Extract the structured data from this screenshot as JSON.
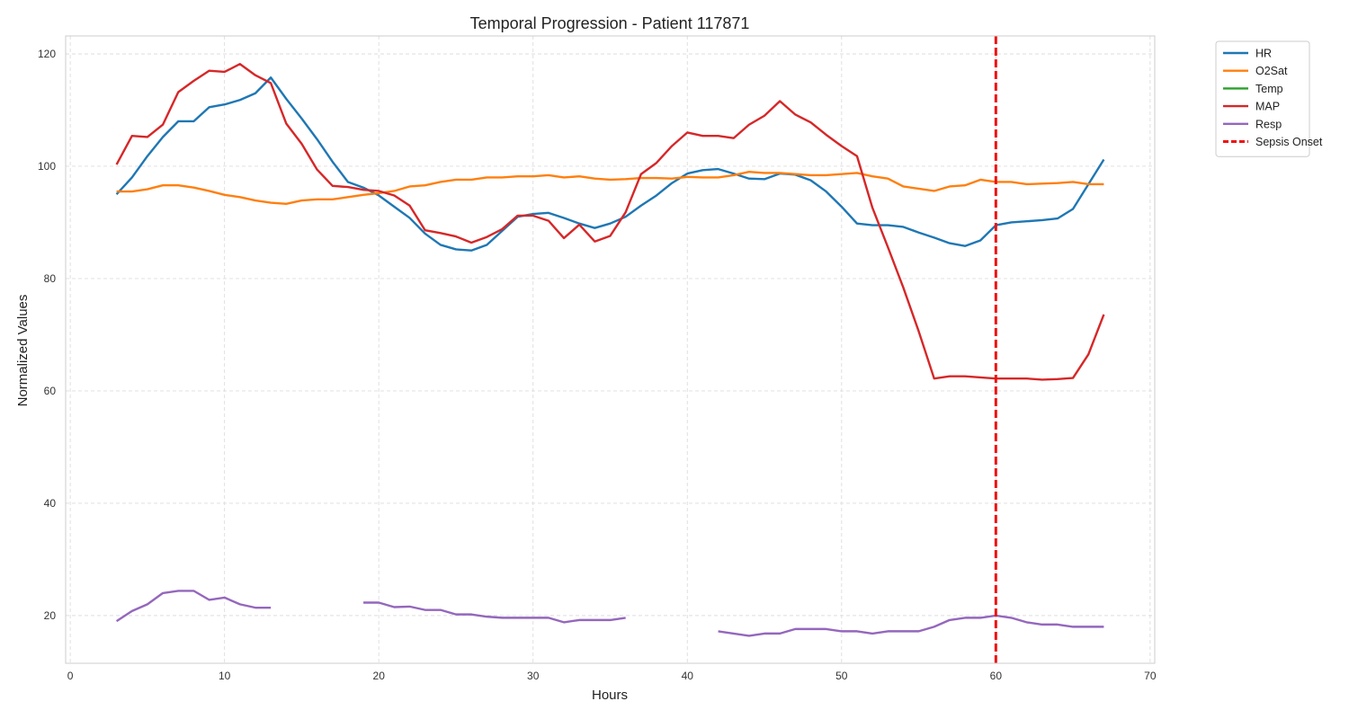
{
  "chart_data": {
    "type": "line",
    "title": "Temporal Progression - Patient 117871",
    "xlabel": "Hours",
    "ylabel": "Normalized Values",
    "xlim": [
      -0.3,
      70.3
    ],
    "ylim": [
      11.5,
      123.2
    ],
    "xticks": [
      0,
      10,
      20,
      30,
      40,
      50,
      60,
      70
    ],
    "yticks": [
      20,
      40,
      60,
      80,
      100,
      120
    ],
    "grid": true,
    "legend_position": "outside top-right",
    "series": [
      {
        "name": "HR",
        "color": "#1f77b4",
        "x": [
          3,
          4,
          5,
          6,
          7,
          8,
          9,
          10,
          11,
          12,
          13,
          14,
          15,
          16,
          17,
          18,
          19,
          20,
          21,
          22,
          23,
          24,
          25,
          26,
          27,
          28,
          29,
          30,
          31,
          32,
          33,
          34,
          35,
          36,
          37,
          38,
          39,
          40,
          41,
          42,
          43,
          44,
          45,
          46,
          47,
          48,
          49,
          50,
          51,
          52,
          53,
          54,
          55,
          56,
          57,
          58,
          59,
          60,
          61,
          62,
          63,
          64,
          65,
          66,
          67
        ],
        "y": [
          95,
          98,
          101.8,
          105.2,
          108,
          108,
          110.5,
          111,
          111.8,
          113,
          115.8,
          112,
          108.5,
          104.8,
          100.8,
          97.2,
          96.2,
          94.8,
          92.8,
          90.8,
          88,
          86,
          85.2,
          85,
          86,
          88.5,
          91,
          91.5,
          91.7,
          90.8,
          89.8,
          89,
          89.8,
          91,
          93,
          94.8,
          97,
          98.7,
          99.3,
          99.5,
          98.7,
          97.8,
          97.7,
          98.7,
          98.5,
          97.5,
          95.5,
          92.8,
          89.8,
          89.5,
          89.5,
          89.2,
          88.2,
          87.3,
          86.3,
          85.8,
          86.8,
          89.5,
          90,
          90.2,
          90.4,
          90.7,
          92.4,
          96.8,
          101.2
        ]
      },
      {
        "name": "O2Sat",
        "color": "#ff7f0e",
        "x": [
          3,
          4,
          5,
          6,
          7,
          8,
          9,
          10,
          11,
          12,
          13,
          14,
          15,
          16,
          17,
          18,
          19,
          20,
          21,
          22,
          23,
          24,
          25,
          26,
          27,
          28,
          29,
          30,
          31,
          32,
          33,
          34,
          35,
          36,
          37,
          38,
          39,
          40,
          41,
          42,
          43,
          44,
          45,
          46,
          47,
          48,
          49,
          50,
          51,
          52,
          53,
          54,
          55,
          56,
          57,
          58,
          59,
          60,
          61,
          62,
          63,
          64,
          65,
          66,
          67
        ],
        "y": [
          95.5,
          95.5,
          95.9,
          96.6,
          96.6,
          96.2,
          95.6,
          94.9,
          94.5,
          93.9,
          93.5,
          93.3,
          93.9,
          94.1,
          94.1,
          94.5,
          94.9,
          95.2,
          95.6,
          96.4,
          96.6,
          97.2,
          97.6,
          97.6,
          98,
          98,
          98.2,
          98.2,
          98.4,
          98,
          98.2,
          97.8,
          97.6,
          97.7,
          97.9,
          97.9,
          97.8,
          98.1,
          98,
          98,
          98.4,
          99,
          98.8,
          98.8,
          98.6,
          98.4,
          98.4,
          98.6,
          98.8,
          98.2,
          97.8,
          96.4,
          96,
          95.6,
          96.4,
          96.6,
          97.6,
          97.2,
          97.2,
          96.8,
          96.9,
          97,
          97.2,
          96.8,
          96.8
        ]
      },
      {
        "name": "Temp",
        "color": "#2ca02c",
        "x": [],
        "y": []
      },
      {
        "name": "MAP",
        "color": "#d62728",
        "x": [
          3,
          4,
          5,
          6,
          7,
          8,
          9,
          10,
          11,
          12,
          13,
          14,
          15,
          16,
          17,
          18,
          19,
          20,
          21,
          22,
          23,
          24,
          25,
          26,
          27,
          28,
          29,
          30,
          31,
          32,
          33,
          34,
          35,
          36,
          37,
          38,
          39,
          40,
          41,
          42,
          43,
          44,
          45,
          46,
          47,
          48,
          49,
          50,
          51,
          52,
          53,
          54,
          55,
          56,
          57,
          58,
          59,
          60,
          61,
          62,
          63,
          64,
          65,
          66,
          67
        ],
        "y": [
          100.3,
          105.4,
          105.2,
          107.4,
          113.2,
          115.2,
          117,
          116.8,
          118.2,
          116.2,
          114.8,
          107.6,
          104,
          99.4,
          96.5,
          96.3,
          95.8,
          95.6,
          94.8,
          93,
          88.6,
          88.1,
          87.5,
          86.4,
          87.4,
          88.8,
          91.2,
          91.2,
          90.3,
          87.2,
          89.6,
          86.6,
          87.6,
          91.8,
          98.6,
          100.6,
          103.6,
          106,
          105.4,
          105.4,
          105,
          107.4,
          109,
          111.6,
          109.2,
          107.8,
          105.6,
          103.6,
          101.8,
          92.6,
          85.6,
          78.4,
          70.6,
          62.2,
          62.6,
          62.6,
          62.4,
          62.2,
          62.2,
          62.2,
          62,
          62.1,
          62.3,
          66.5,
          73.6
        ]
      },
      {
        "name": "Resp",
        "color": "#9467bd",
        "x": [
          3,
          4,
          5,
          6,
          7,
          8,
          9,
          10,
          11,
          12,
          13,
          14,
          15,
          16,
          17,
          18,
          19,
          20,
          21,
          22,
          23,
          24,
          25,
          26,
          27,
          28,
          29,
          30,
          31,
          32,
          33,
          34,
          35,
          36,
          37,
          38,
          39,
          40,
          41,
          42,
          43,
          44,
          45,
          46,
          47,
          48,
          49,
          50,
          51,
          52,
          53,
          54,
          55,
          56,
          57,
          58,
          59,
          60,
          61,
          62,
          63,
          64,
          65,
          66,
          67
        ],
        "y": [
          19,
          20.8,
          22,
          24,
          24.4,
          24.4,
          22.8,
          23.2,
          22,
          21.4,
          21.4,
          null,
          null,
          null,
          null,
          null,
          22.3,
          22.3,
          21.5,
          21.6,
          21,
          21,
          20.2,
          20.2,
          19.8,
          19.6,
          19.6,
          19.6,
          19.6,
          18.8,
          19.2,
          19.2,
          19.2,
          19.6,
          null,
          null,
          null,
          null,
          null,
          17.2,
          16.8,
          16.4,
          16.8,
          16.8,
          17.6,
          17.6,
          17.6,
          17.2,
          17.2,
          16.8,
          17.2,
          17.2,
          17.2,
          18,
          19.2,
          19.6,
          19.6,
          20,
          19.6,
          18.8,
          18.4,
          18.4,
          18,
          18,
          18
        ]
      }
    ],
    "annotations": [
      {
        "name": "Sepsis Onset",
        "type": "vline",
        "x": 60,
        "color": "#ee1111",
        "linestyle": "dashed"
      }
    ]
  }
}
